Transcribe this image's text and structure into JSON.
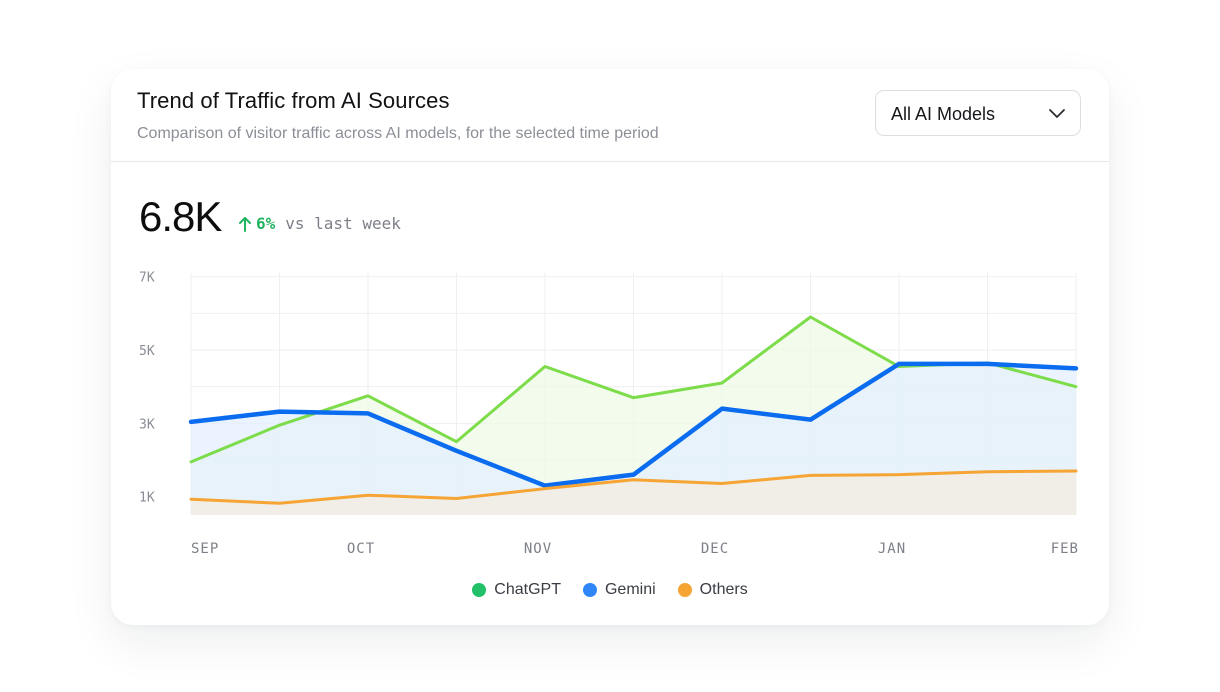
{
  "header": {
    "title": "Trend of Traffic from AI Sources",
    "subtitle": "Comparison of visitor traffic across AI models, for the selected time period"
  },
  "filter": {
    "selected": "All AI Models",
    "icon": "chevron-down-icon"
  },
  "summary": {
    "value": "6.8K",
    "delta": "6%",
    "delta_icon": "arrow-up-icon",
    "delta_text": "vs last week",
    "delta_color": "#22b35f"
  },
  "chart_data": {
    "type": "area",
    "title": "",
    "xlabel": "",
    "ylabel": "",
    "x_ticks": [
      "SEP",
      "OCT",
      "NOV",
      "DEC",
      "JAN",
      "FEB"
    ],
    "y_ticks": [
      "7K",
      "5K",
      "3K",
      "1K"
    ],
    "y_tick_values": [
      7000,
      5000,
      3000,
      1000
    ],
    "ylim": [
      500,
      7100
    ],
    "grid": true,
    "legend": "bottom-center",
    "x": [
      0,
      0.5,
      1,
      1.5,
      2,
      2.5,
      3,
      3.5,
      4,
      4.5,
      5
    ],
    "series": [
      {
        "name": "ChatGPT",
        "color": "#7ddc4a",
        "fill": "#eefae6",
        "legend_color": "#22c068",
        "values": [
          1950,
          2950,
          3750,
          2500,
          4550,
          3700,
          4100,
          5900,
          4550,
          4650,
          4000
        ]
      },
      {
        "name": "Gemini",
        "color": "#0b6cf0",
        "fill": "#e3efff",
        "legend_color": "#2f86f6",
        "values": [
          3040,
          3320,
          3270,
          2250,
          1300,
          1600,
          3400,
          3100,
          4620,
          4620,
          4500
        ]
      },
      {
        "name": "Others",
        "color": "#f6a535",
        "fill": "#f3ecdf",
        "legend_color": "#f6a535",
        "values": [
          930,
          820,
          1040,
          950,
          1220,
          1460,
          1360,
          1580,
          1600,
          1680,
          1700
        ]
      }
    ]
  }
}
